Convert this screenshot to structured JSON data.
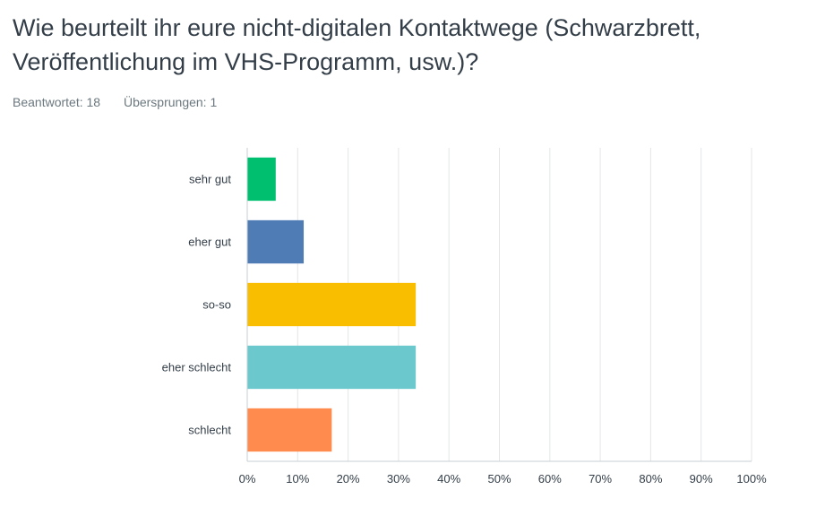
{
  "question": {
    "title": "Wie beurteilt ihr eure nicht-digitalen Kontaktwege (Schwarzbrett, Veröffentlichung im VHS-Programm, usw.)?",
    "answered_label": "Beantwortet: 18",
    "skipped_label": "Übersprungen: 1"
  },
  "chart_data": {
    "type": "bar",
    "orientation": "horizontal",
    "categories": [
      "sehr gut",
      "eher gut",
      "so-so",
      "eher schlecht",
      "schlecht"
    ],
    "values": [
      5.56,
      11.11,
      33.33,
      33.33,
      16.67
    ],
    "colors": [
      "#00bf6f",
      "#507cb6",
      "#f9be00",
      "#6bc8cd",
      "#ff8b4f"
    ],
    "xlim": [
      0,
      100
    ],
    "xticks": [
      "0%",
      "10%",
      "20%",
      "30%",
      "40%",
      "50%",
      "60%",
      "70%",
      "80%",
      "90%",
      "100%"
    ],
    "grid": true,
    "legend": "none"
  }
}
